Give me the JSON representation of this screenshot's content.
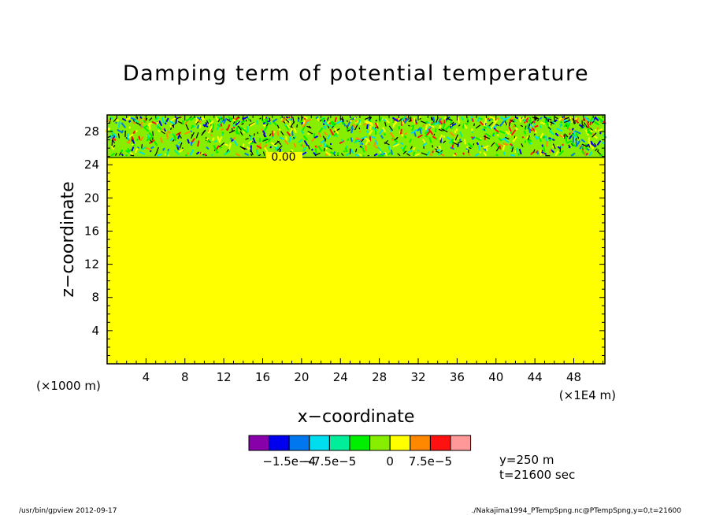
{
  "chart_data": {
    "type": "heatmap",
    "title": "Damping term of potential temperature",
    "xlabel": "x−coordinate",
    "ylabel": "z−coordinate",
    "x_unit_label": "(×1E4 m)",
    "y_unit_label": "(×1000 m)",
    "xlim": [
      0,
      51.2
    ],
    "ylim": [
      0,
      30
    ],
    "x_ticks": [
      4,
      8,
      12,
      16,
      20,
      24,
      28,
      32,
      36,
      40,
      44,
      48
    ],
    "y_ticks": [
      4,
      8,
      12,
      16,
      20,
      24,
      28
    ],
    "background_field": {
      "value_range": "0 to 7.5e-5",
      "color": "#ffff00",
      "z_range": [
        0,
        24.8
      ]
    },
    "sponge_layer": {
      "z_range": [
        24.8,
        30
      ],
      "description_value_min": -0.00015,
      "description_value_max": 0.00015
    },
    "contour_annotation": {
      "text": "0.00",
      "x": 21,
      "z": 24.8
    },
    "colorbar": {
      "colors": [
        "#8800aa",
        "#0000ee",
        "#0077ee",
        "#00ddee",
        "#00ee99",
        "#00ee00",
        "#88ee00",
        "#ffff00",
        "#ff8800",
        "#ff1111",
        "#ff9999"
      ],
      "tick_labels": [
        "−1.5e−4",
        "−7.5e−5",
        "0",
        "7.5e−5"
      ],
      "tick_positions_index": [
        2,
        4,
        7,
        9
      ]
    },
    "info": [
      "y=250  m",
      "t=21600 sec"
    ]
  },
  "footer": {
    "left": "/usr/bin/gpview   2012-09-17",
    "right": "./Nakajima1994_PTempSpng.nc@PTempSpng,y=0,t=21600"
  }
}
